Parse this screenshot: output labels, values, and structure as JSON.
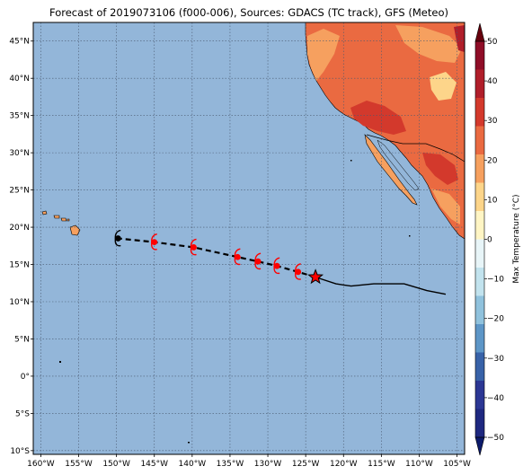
{
  "title": "Forecast of 2019073106 (f000-006), Sources: GDACS (TC track), GFS (Meteo)",
  "map": {
    "lon_range": [
      -161,
      -104
    ],
    "lat_range": [
      -10.5,
      47.5
    ],
    "lon_ticks": [
      -160,
      -155,
      -150,
      -145,
      -140,
      -135,
      -130,
      -125,
      -120,
      -115,
      -110,
      -105
    ],
    "lat_ticks": [
      -10,
      -5,
      0,
      5,
      10,
      15,
      20,
      25,
      30,
      35,
      40,
      45
    ],
    "lon_tick_labels": [
      "160°W",
      "155°W",
      "150°W",
      "145°W",
      "140°W",
      "135°W",
      "130°W",
      "125°W",
      "120°W",
      "115°W",
      "110°W",
      "105°W"
    ],
    "lat_tick_labels": [
      "10°S",
      "5°S",
      "0°",
      "5°N",
      "10°N",
      "15°N",
      "20°N",
      "25°N",
      "30°N",
      "35°N",
      "40°N",
      "45°N"
    ],
    "ocean_color": "#93b6d9",
    "grid": true
  },
  "colorbar": {
    "label": "Max Temperature (°C)",
    "ticks": [
      50,
      40,
      30,
      20,
      10,
      0,
      -10,
      -20,
      -30,
      -40,
      -50
    ],
    "tick_labels": [
      "50",
      "40",
      "30",
      "20",
      "10",
      "0",
      "−10",
      "−20",
      "−30",
      "−40",
      "−50"
    ],
    "colors_top_to_bottom": [
      "#8f0d27",
      "#b01e2a",
      "#d3392c",
      "#ea6a41",
      "#f6a05f",
      "#fdd58a",
      "#fff5c4",
      "#e8f5f8",
      "#c2e3ee",
      "#90c2dd",
      "#5d96c7",
      "#3862a8",
      "#2c3794",
      "#1e2880"
    ]
  },
  "storm_track": {
    "past_track": [
      [
        -106.5,
        11.0
      ],
      [
        -109,
        11.5
      ],
      [
        -112,
        12.4
      ],
      [
        -116,
        12.4
      ],
      [
        -119,
        12.1
      ],
      [
        -121,
        12.4
      ],
      [
        -123.7,
        13.3
      ]
    ],
    "current_position": [
      -123.7,
      13.3
    ],
    "forecast_positions": [
      [
        -126.0,
        14.0
      ],
      [
        -128.8,
        14.8
      ],
      [
        -131.3,
        15.4
      ],
      [
        -134.0,
        16.0
      ],
      [
        -139.8,
        17.3
      ],
      [
        -145.0,
        18.0
      ],
      [
        -149.8,
        18.5
      ]
    ],
    "forecast_colors": [
      "#ff0000",
      "#ff0000",
      "#ff0000",
      "#ff0000",
      "#ff0000",
      "#ff0000",
      "#000000"
    ]
  }
}
